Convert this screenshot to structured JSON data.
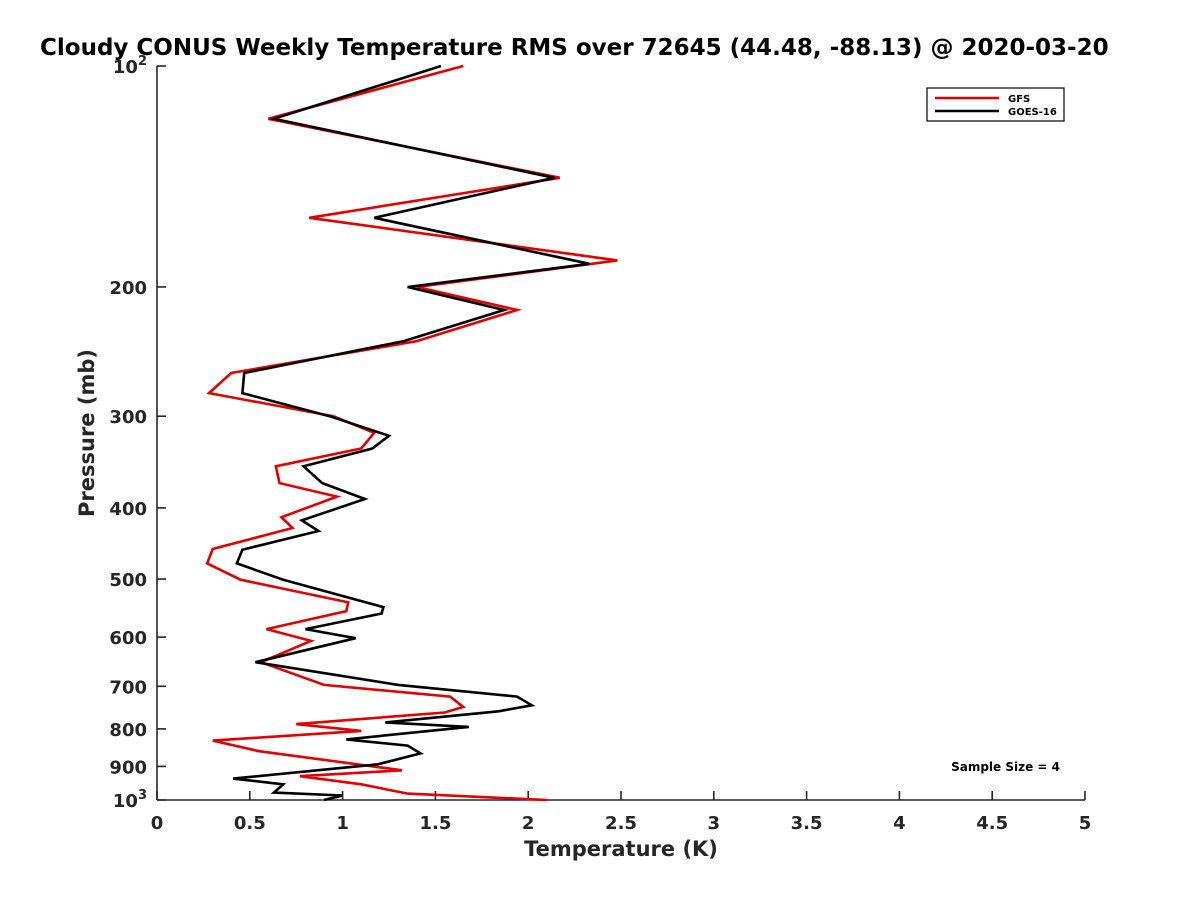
{
  "chart_data": {
    "type": "line",
    "title": "Cloudy CONUS Weekly Temperature RMS over 72645 (44.48, -88.13) @ 2020-03-20",
    "xlabel": "Temperature (K)",
    "ylabel": "Pressure (mb)",
    "xlim": [
      0,
      5
    ],
    "ylim": [
      1000,
      100
    ],
    "yscale": "log",
    "y_reversed": true,
    "grid": false,
    "legend_position": "top-right",
    "x_ticks": [
      "0",
      "0.5",
      "1",
      "1.5",
      "2",
      "2.5",
      "3",
      "3.5",
      "4",
      "4.5",
      "5"
    ],
    "y_ticks": [
      {
        "value": 100,
        "label": "10",
        "sup": "2"
      },
      {
        "value": 200,
        "label": "200",
        "sup": ""
      },
      {
        "value": 300,
        "label": "300",
        "sup": ""
      },
      {
        "value": 400,
        "label": "400",
        "sup": ""
      },
      {
        "value": 500,
        "label": "500",
        "sup": ""
      },
      {
        "value": 600,
        "label": "600",
        "sup": ""
      },
      {
        "value": 700,
        "label": "700",
        "sup": ""
      },
      {
        "value": 800,
        "label": "800",
        "sup": ""
      },
      {
        "value": 900,
        "label": "900",
        "sup": ""
      },
      {
        "value": 1000,
        "label": "10",
        "sup": "3"
      }
    ],
    "series": [
      {
        "name": "GFS",
        "color": "#e00000",
        "points": [
          [
            1.65,
            100
          ],
          [
            0.6,
            118
          ],
          [
            2.17,
            142
          ],
          [
            0.82,
            161
          ],
          [
            2.48,
            184
          ],
          [
            1.4,
            200
          ],
          [
            1.94,
            215
          ],
          [
            1.4,
            237
          ],
          [
            0.4,
            262
          ],
          [
            0.28,
            279
          ],
          [
            0.95,
            300
          ],
          [
            1.17,
            316
          ],
          [
            1.1,
            332
          ],
          [
            0.64,
            351
          ],
          [
            0.66,
            370
          ],
          [
            0.97,
            386
          ],
          [
            0.67,
            412
          ],
          [
            0.73,
            426
          ],
          [
            0.3,
            455
          ],
          [
            0.27,
            476
          ],
          [
            0.45,
            501
          ],
          [
            1.03,
            538
          ],
          [
            1.02,
            553
          ],
          [
            0.59,
            585
          ],
          [
            0.83,
            607
          ],
          [
            0.56,
            649
          ],
          [
            0.9,
            697
          ],
          [
            1.58,
            723
          ],
          [
            1.65,
            747
          ],
          [
            1.55,
            760
          ],
          [
            0.75,
            788
          ],
          [
            1.1,
            805
          ],
          [
            0.3,
            830
          ],
          [
            0.55,
            858
          ],
          [
            1.32,
            911
          ],
          [
            0.77,
            928
          ],
          [
            1.1,
            952
          ],
          [
            1.35,
            980
          ],
          [
            2.1,
            1000
          ]
        ]
      },
      {
        "name": "GOES-16",
        "color": "#000000",
        "points": [
          [
            1.53,
            100
          ],
          [
            0.63,
            118
          ],
          [
            2.14,
            142
          ],
          [
            1.17,
            161
          ],
          [
            2.33,
            186
          ],
          [
            1.35,
            200
          ],
          [
            1.87,
            215
          ],
          [
            1.33,
            237
          ],
          [
            0.47,
            262
          ],
          [
            0.46,
            279
          ],
          [
            0.93,
            300
          ],
          [
            1.25,
            319
          ],
          [
            1.16,
            332
          ],
          [
            0.79,
            351
          ],
          [
            0.89,
            370
          ],
          [
            1.12,
            389
          ],
          [
            0.78,
            416
          ],
          [
            0.87,
            430
          ],
          [
            0.46,
            456
          ],
          [
            0.43,
            476
          ],
          [
            0.68,
            501
          ],
          [
            1.22,
            546
          ],
          [
            1.21,
            557
          ],
          [
            0.8,
            585
          ],
          [
            1.07,
            602
          ],
          [
            0.53,
            649
          ],
          [
            1.3,
            697
          ],
          [
            1.94,
            723
          ],
          [
            2.02,
            743
          ],
          [
            1.84,
            757
          ],
          [
            1.23,
            784
          ],
          [
            1.68,
            795
          ],
          [
            1.02,
            827
          ],
          [
            1.35,
            843
          ],
          [
            1.42,
            864
          ],
          [
            1.19,
            894
          ],
          [
            0.41,
            935
          ],
          [
            0.68,
            952
          ],
          [
            0.63,
            977
          ],
          [
            1.0,
            986
          ],
          [
            0.9,
            1000
          ]
        ]
      }
    ],
    "annotation": "Sample Size = 4"
  }
}
